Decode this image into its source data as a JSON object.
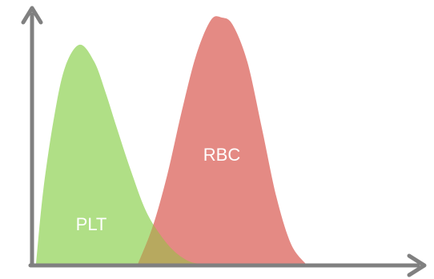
{
  "chart_data": {
    "type": "area",
    "title": "",
    "xlabel": "",
    "ylabel": "",
    "grid": false,
    "legend": "none",
    "xlim": [
      0,
      100
    ],
    "ylim": [
      0,
      100
    ],
    "series": [
      {
        "name": "PLT",
        "color": "#a9dc7c",
        "x": [
          0,
          2,
          5,
          8,
          12,
          16,
          19,
          22,
          26,
          30,
          34,
          38,
          42,
          45
        ],
        "y": [
          0,
          30,
          60,
          80,
          89,
          82,
          70,
          56,
          38,
          22,
          12,
          5,
          1,
          0
        ]
      },
      {
        "name": "RBC",
        "color": "#e2807a",
        "x": [
          28,
          32,
          36,
          40,
          44,
          48,
          51,
          54,
          58,
          62,
          66,
          70,
          74
        ],
        "y": [
          0,
          15,
          36,
          62,
          85,
          99,
          100,
          97,
          82,
          55,
          27,
          8,
          0
        ]
      }
    ],
    "labels": {
      "plt": "PLT",
      "rbc": "RBC"
    }
  },
  "colors": {
    "axis": "#808080",
    "plt": "#a9dc7c",
    "rbc": "#e2807a"
  }
}
